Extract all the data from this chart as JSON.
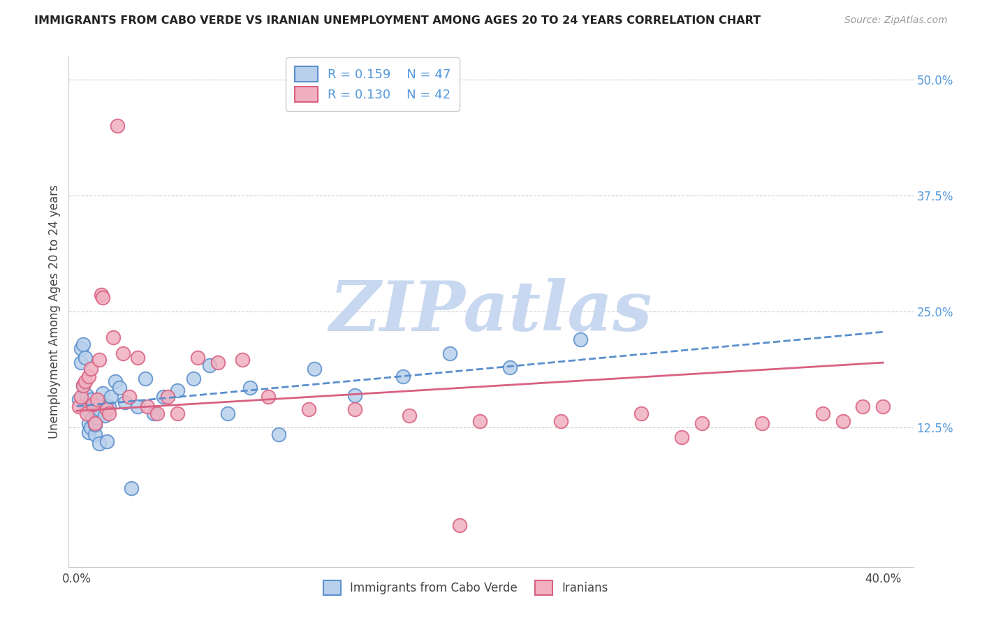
{
  "title": "IMMIGRANTS FROM CABO VERDE VS IRANIAN UNEMPLOYMENT AMONG AGES 20 TO 24 YEARS CORRELATION CHART",
  "source": "Source: ZipAtlas.com",
  "ylabel_left": "Unemployment Among Ages 20 to 24 years",
  "xlim": [
    -0.004,
    0.415
  ],
  "ylim": [
    -0.025,
    0.525
  ],
  "xticks": [
    0.0,
    0.1,
    0.2,
    0.3,
    0.4
  ],
  "xticklabels": [
    "0.0%",
    "",
    "",
    "",
    "40.0%"
  ],
  "yticks_right": [
    0.125,
    0.25,
    0.375,
    0.5
  ],
  "yticklabels_right": [
    "12.5%",
    "25.0%",
    "37.5%",
    "50.0%"
  ],
  "legend_r1": "R = 0.159",
  "legend_n1": "N = 47",
  "legend_r2": "R = 0.130",
  "legend_n2": "N = 42",
  "watermark": "ZIPatlas",
  "watermark_color": "#c8d8f0",
  "blue_edge": "#5b8fcc",
  "blue_face": "#b8d0ec",
  "pink_edge": "#d96080",
  "pink_face": "#f0b0c0",
  "trend_blue_color": "#5b8fcc",
  "trend_pink_color": "#d96080",
  "grid_color": "#cccccc",
  "background": "#ffffff",
  "cabo_verde_x": [
    0.001,
    0.002,
    0.002,
    0.003,
    0.003,
    0.004,
    0.004,
    0.005,
    0.005,
    0.006,
    0.006,
    0.007,
    0.007,
    0.008,
    0.008,
    0.009,
    0.009,
    0.01,
    0.01,
    0.011,
    0.011,
    0.012,
    0.013,
    0.014,
    0.015,
    0.016,
    0.017,
    0.019,
    0.021,
    0.024,
    0.027,
    0.03,
    0.034,
    0.038,
    0.043,
    0.05,
    0.058,
    0.066,
    0.075,
    0.086,
    0.1,
    0.118,
    0.138,
    0.162,
    0.185,
    0.215,
    0.25
  ],
  "cabo_verde_y": [
    0.155,
    0.21,
    0.195,
    0.215,
    0.17,
    0.2,
    0.15,
    0.16,
    0.145,
    0.13,
    0.12,
    0.155,
    0.125,
    0.135,
    0.148,
    0.118,
    0.128,
    0.142,
    0.136,
    0.108,
    0.145,
    0.152,
    0.162,
    0.138,
    0.11,
    0.148,
    0.158,
    0.175,
    0.168,
    0.152,
    0.06,
    0.148,
    0.178,
    0.14,
    0.158,
    0.165,
    0.178,
    0.192,
    0.14,
    0.168,
    0.118,
    0.188,
    0.16,
    0.18,
    0.205,
    0.19,
    0.22
  ],
  "iranians_x": [
    0.001,
    0.002,
    0.003,
    0.004,
    0.005,
    0.006,
    0.007,
    0.008,
    0.009,
    0.01,
    0.011,
    0.012,
    0.013,
    0.015,
    0.016,
    0.018,
    0.02,
    0.023,
    0.026,
    0.03,
    0.035,
    0.04,
    0.045,
    0.05,
    0.06,
    0.07,
    0.082,
    0.095,
    0.115,
    0.138,
    0.165,
    0.2,
    0.24,
    0.28,
    0.31,
    0.34,
    0.37,
    0.39,
    0.4,
    0.38,
    0.3,
    0.19
  ],
  "iranians_y": [
    0.148,
    0.158,
    0.17,
    0.175,
    0.14,
    0.18,
    0.188,
    0.15,
    0.13,
    0.155,
    0.198,
    0.268,
    0.265,
    0.145,
    0.14,
    0.222,
    0.45,
    0.205,
    0.158,
    0.2,
    0.148,
    0.14,
    0.158,
    0.14,
    0.2,
    0.195,
    0.198,
    0.158,
    0.145,
    0.145,
    0.138,
    0.132,
    0.132,
    0.14,
    0.13,
    0.13,
    0.14,
    0.148,
    0.148,
    0.132,
    0.115,
    0.02
  ],
  "blue_trend_x0": 0.0,
  "blue_trend_y0": 0.148,
  "blue_trend_x1": 0.4,
  "blue_trend_y1": 0.228,
  "pink_trend_x0": 0.0,
  "pink_trend_y0": 0.143,
  "pink_trend_x1": 0.4,
  "pink_trend_y1": 0.195
}
